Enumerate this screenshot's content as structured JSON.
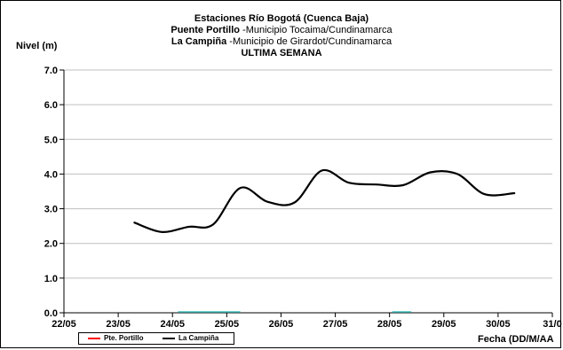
{
  "chart_data": {
    "type": "line",
    "title_lines": [
      {
        "bold": "Estaciones Río Bogotá (Cuenca Baja)",
        "rest": ""
      },
      {
        "bold": "Puente Portillo",
        "rest": " -Municipio Tocaima/Cundinamarca"
      },
      {
        "bold": "La Campiña",
        "rest": " -Municipio de Girardot/Cundinamarca"
      },
      {
        "bold": "ULTIMA SEMANA",
        "rest": ""
      }
    ],
    "ylabel": "Nivel (m)",
    "xlabel": "Fecha (DD/M/AA",
    "ylim": [
      0,
      7
    ],
    "yticks": [
      "0.0",
      "1.0",
      "2.0",
      "3.0",
      "4.0",
      "5.0",
      "6.0",
      "7.0"
    ],
    "xlim": [
      0,
      9
    ],
    "xticks": [
      "22/05",
      "23/05",
      "24/05",
      "25/05",
      "26/05",
      "27/05",
      "28/05",
      "29/05",
      "30/05",
      "31/0"
    ],
    "grid": "horizontal",
    "legend_position": "bottom-left",
    "series": [
      {
        "name": "Pte. Portillo",
        "color": "#ff0000",
        "x": [],
        "y": []
      },
      {
        "name": "La Campiña",
        "color": "#000000",
        "x": [
          1.3,
          1.8,
          2.3,
          2.75,
          3.25,
          3.75,
          4.25,
          4.75,
          5.25,
          5.75,
          6.25,
          6.75,
          7.25,
          7.75,
          8.3
        ],
        "y": [
          2.6,
          2.33,
          2.48,
          2.55,
          3.6,
          3.2,
          3.18,
          4.1,
          3.75,
          3.7,
          3.68,
          4.05,
          4.0,
          3.42,
          3.45
        ]
      }
    ],
    "markers": [
      {
        "label": "",
        "color": "#40bfbf",
        "x_start": 2.1,
        "x_end": 3.25
      },
      {
        "label": "",
        "color": "#40bfbf",
        "x_start": 6.05,
        "x_end": 6.4
      }
    ]
  }
}
